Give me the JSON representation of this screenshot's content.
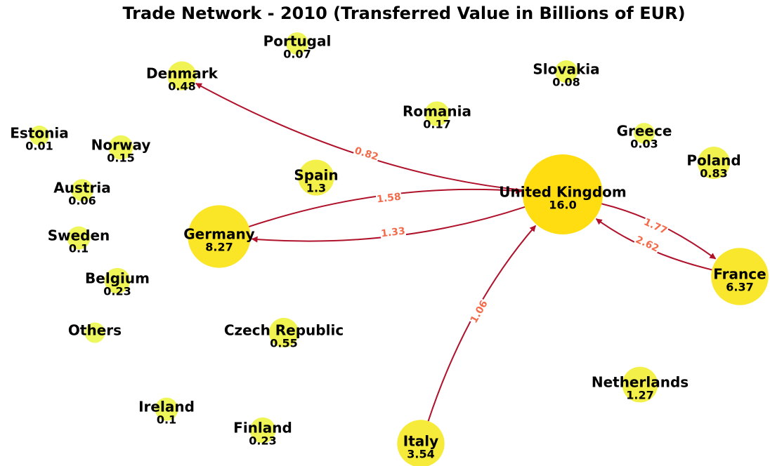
{
  "title": "Trade Network - 2010 (Transferred Value in Billions of EUR)",
  "nodes": [
    {
      "label": "Portugal",
      "value": 0.07
    },
    {
      "label": "Denmark",
      "value": 0.48
    },
    {
      "label": "Slovakia",
      "value": 0.08
    },
    {
      "label": "Romania",
      "value": 0.17
    },
    {
      "label": "Estonia",
      "value": 0.01
    },
    {
      "label": "Norway",
      "value": 0.15
    },
    {
      "label": "Greece",
      "value": 0.03
    },
    {
      "label": "Poland",
      "value": 0.83
    },
    {
      "label": "Spain",
      "value": 1.3
    },
    {
      "label": "United Kingdom",
      "value": 16,
      "value_label": "16.0"
    },
    {
      "label": "Austria",
      "value": 0.06
    },
    {
      "label": "Germany",
      "value": 8.27
    },
    {
      "label": "Sweden",
      "value": 0.1
    },
    {
      "label": "France",
      "value": 6.37
    },
    {
      "label": "Belgium",
      "value": 0.23
    },
    {
      "label": "Others"
    },
    {
      "label": "Czech Republic",
      "value": 0.55
    },
    {
      "label": "Netherlands",
      "value": 1.27
    },
    {
      "label": "Ireland",
      "value": 0.1
    },
    {
      "label": "Finland",
      "value": 0.23
    },
    {
      "label": "Italy",
      "value": 3.54
    }
  ],
  "edges": [
    {
      "source": "United Kingdom",
      "target": "Denmark",
      "value": 0.82
    },
    {
      "source": "Germany",
      "target": "United Kingdom",
      "value": 1.58
    },
    {
      "source": "United Kingdom",
      "target": "Germany",
      "value": 1.33
    },
    {
      "source": "United Kingdom",
      "target": "France",
      "value": 1.77
    },
    {
      "source": "France",
      "target": "United Kingdom",
      "value": 2.62
    },
    {
      "source": "Italy",
      "target": "United Kingdom",
      "value": 1.06
    }
  ]
}
